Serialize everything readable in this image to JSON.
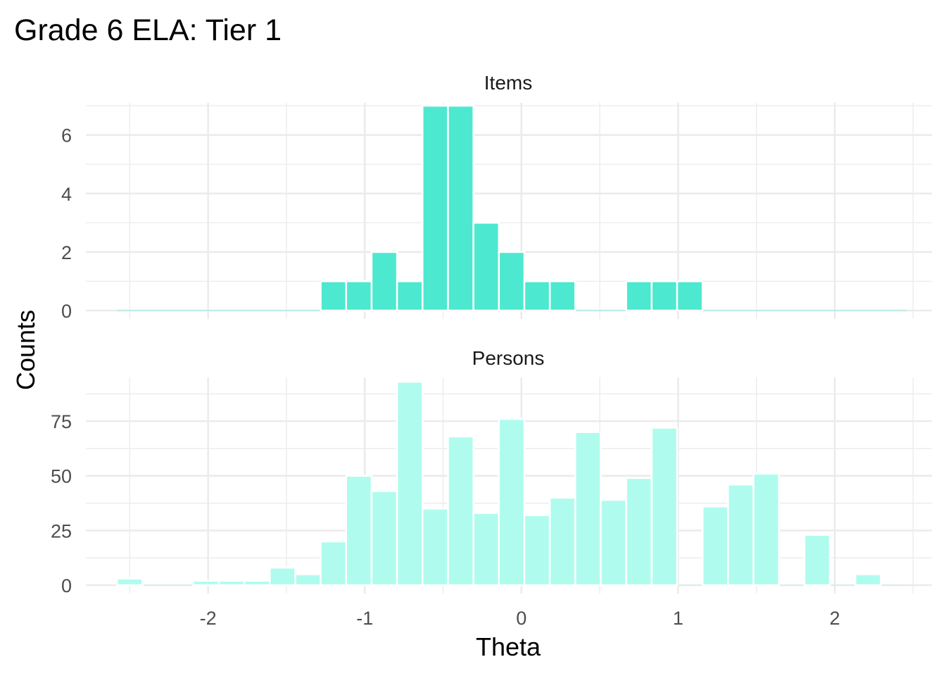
{
  "chart_data": {
    "type": "bar",
    "title": "Grade 6 ELA: Tier 1",
    "xlabel": "Theta",
    "ylabel": "Counts",
    "x_ticks": [
      "-2",
      "-1",
      "0",
      "1",
      "2"
    ],
    "bin_width": 0.1625,
    "bin_centers": [
      -2.5,
      -2.3375,
      -2.175,
      -2.0125,
      -1.85,
      -1.6875,
      -1.525,
      -1.3625,
      -1.2,
      -1.0375,
      -0.875,
      -0.7125,
      -0.55,
      -0.3875,
      -0.225,
      -0.0625,
      0.1,
      0.2625,
      0.425,
      0.5875,
      0.75,
      0.9125,
      1.075,
      1.2375,
      1.4,
      1.5625,
      1.725,
      1.8875,
      2.05,
      2.2125,
      2.375
    ],
    "xlim": [
      -2.78,
      2.62
    ],
    "grid": true,
    "panels": [
      {
        "name": "Items",
        "color": "#4de8d0",
        "y_ticks": [
          "0",
          "2",
          "4",
          "6"
        ],
        "ylim": [
          0,
          7.1
        ],
        "values": [
          0,
          0,
          0,
          0,
          0,
          0,
          0,
          0,
          1,
          1,
          2,
          1,
          7,
          7,
          3,
          2,
          1,
          1,
          0,
          0,
          1,
          1,
          1,
          0,
          0,
          0,
          0,
          0,
          0,
          0,
          0
        ]
      },
      {
        "name": "Persons",
        "color": "#affcee",
        "y_ticks": [
          "0",
          "25",
          "50",
          "75"
        ],
        "ylim": [
          0,
          95
        ],
        "values": [
          3,
          0,
          0,
          2,
          2,
          2,
          8,
          5,
          20,
          50,
          43,
          93,
          35,
          68,
          33,
          76,
          32,
          40,
          70,
          39,
          49,
          72,
          0,
          36,
          46,
          51,
          0,
          23,
          0,
          5,
          0
        ]
      }
    ]
  }
}
